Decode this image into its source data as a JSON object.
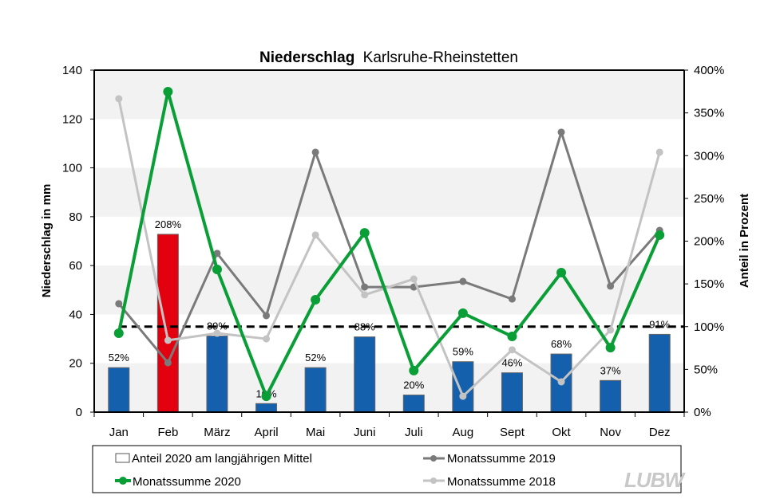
{
  "chart_data": {
    "type": "bar+line",
    "title_bold": "Niederschlag",
    "title_rest": "Karlsruhe-Rheinstetten",
    "ylabel": "Niederschlag in mm",
    "y2label": "Anteil in Prozent",
    "ylim": [
      0,
      140
    ],
    "y2lim": [
      0,
      400
    ],
    "yticks": [
      0,
      20,
      40,
      60,
      80,
      100,
      120,
      140
    ],
    "y2ticks": [
      "0%",
      "50%",
      "100%",
      "150%",
      "200%",
      "250%",
      "300%",
      "350%",
      "400%"
    ],
    "grid": "alternating horizontal bands",
    "categories": [
      "Jan",
      "Feb",
      "März",
      "April",
      "Mai",
      "Juni",
      "Juli",
      "Aug",
      "Sept",
      "Okt",
      "Nov",
      "Dez"
    ],
    "bars": {
      "name": "Anteil 2020 am langjährigen Mittel",
      "axis": "right",
      "values": [
        52,
        208,
        89,
        10,
        52,
        88,
        20,
        59,
        46,
        68,
        37,
        91
      ],
      "labels": [
        "52%",
        "208%",
        "89%",
        "10%",
        "52%",
        "88%",
        "20%",
        "59%",
        "46%",
        "68%",
        "37%",
        "91%"
      ],
      "color": "#1560ac",
      "highlight_color": "#e3000f",
      "highlight_index": 1
    },
    "reference_line": {
      "value_percent": 100,
      "style": "dashed",
      "color": "#000000"
    },
    "series": [
      {
        "name": "Monatssumme 2019",
        "color": "#7a7a7a",
        "values": [
          44.4,
          20.2,
          65,
          39.5,
          106.4,
          51.2,
          51.2,
          53.5,
          46.3,
          114.6,
          51.6,
          74.4
        ]
      },
      {
        "name": "Monatssumme 2018",
        "color": "#c3c3c3",
        "values": [
          128.3,
          29.4,
          32.3,
          30,
          72.5,
          48,
          54.5,
          6.5,
          25.5,
          12.4,
          33.6,
          106.4
        ]
      },
      {
        "name": "Monatssumme 2020",
        "color": "#0a9e37",
        "values": [
          32.3,
          131.2,
          58.4,
          6.5,
          46,
          73.4,
          17,
          40.5,
          31,
          57.1,
          26.4,
          72.5
        ]
      }
    ],
    "legend": {
      "placement": "bottom",
      "items": [
        "Anteil 2020 am langjährigen Mittel",
        "Monatssumme 2019",
        "Monatssumme 2020",
        "Monatssumme 2018"
      ]
    }
  },
  "logo": "LUBW"
}
